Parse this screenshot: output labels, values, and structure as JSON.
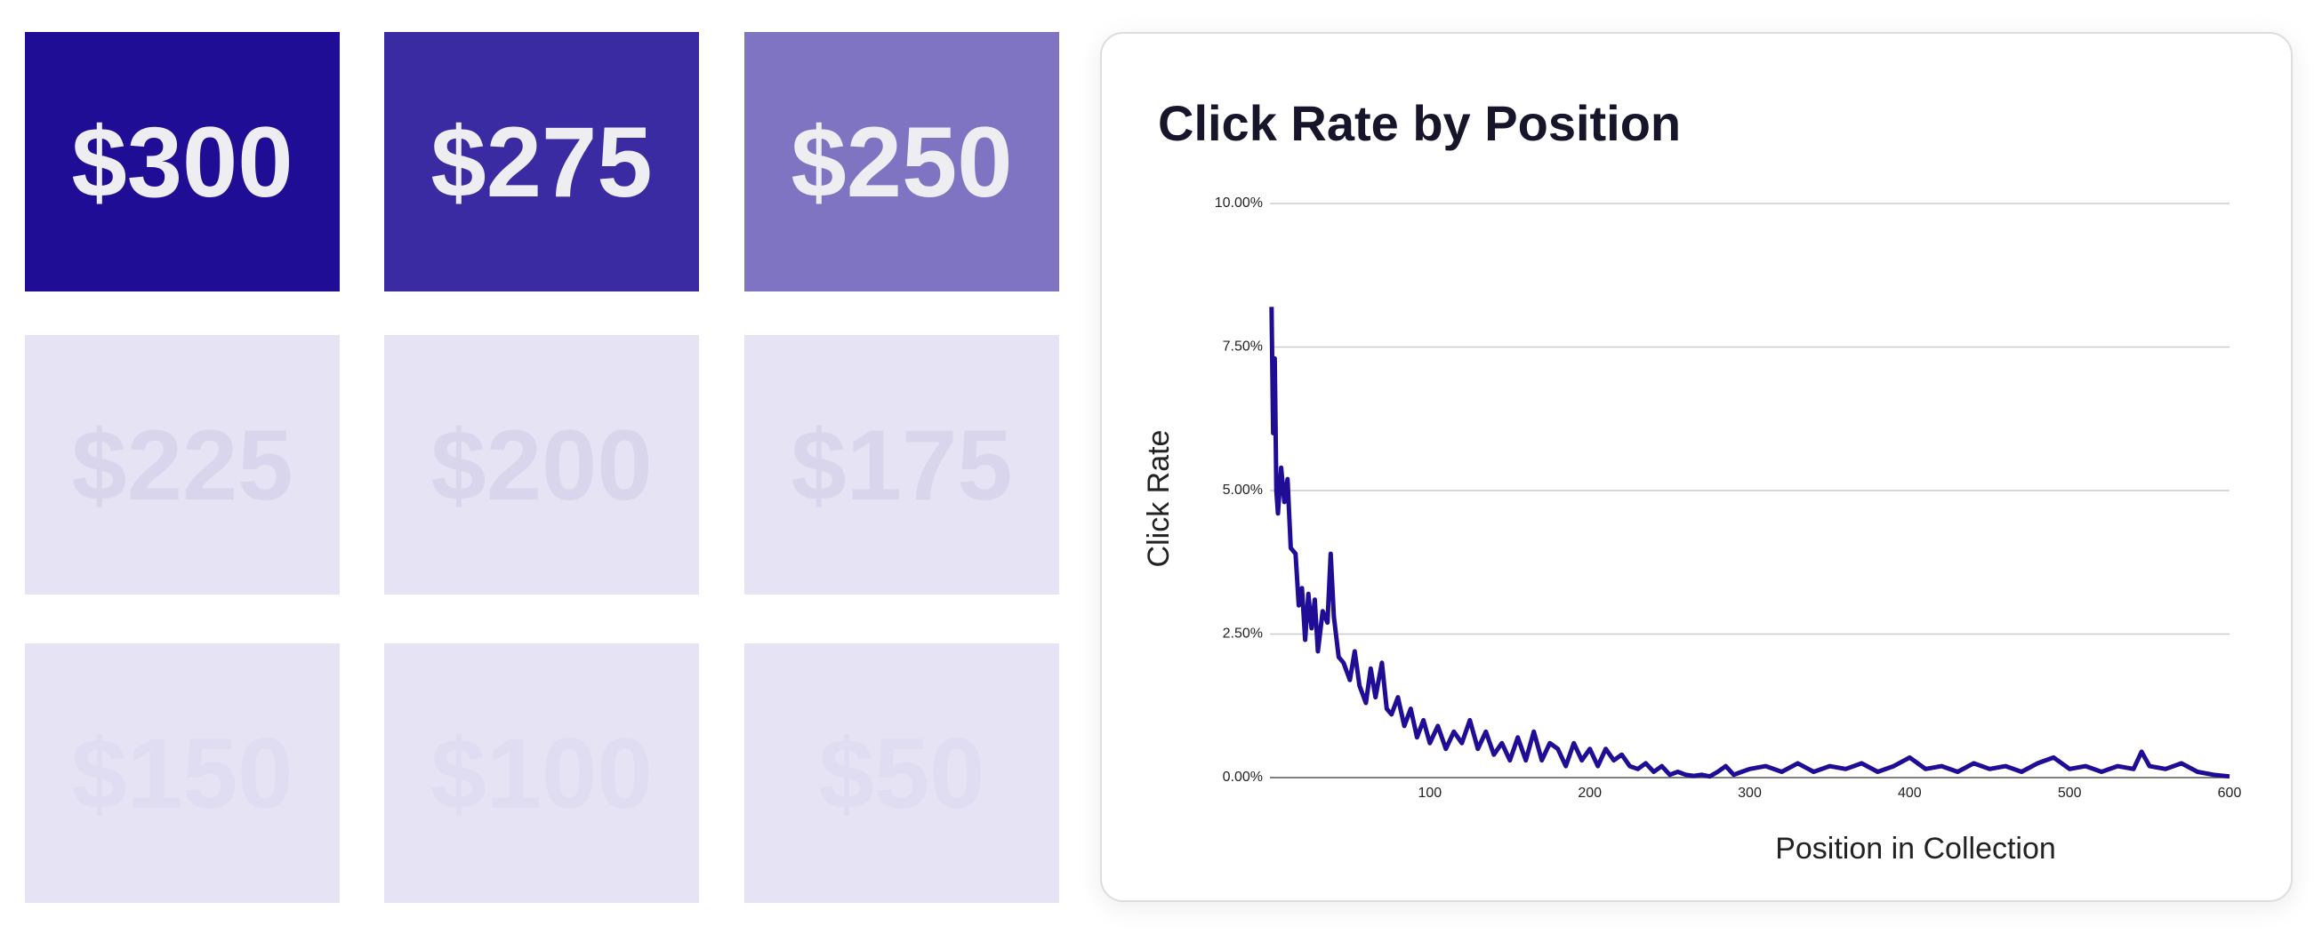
{
  "tiles": [
    {
      "label": "$300",
      "tone": "t1"
    },
    {
      "label": "$275",
      "tone": "t2"
    },
    {
      "label": "$250",
      "tone": "t3"
    },
    {
      "label": "$225",
      "tone": "t4"
    },
    {
      "label": "$200",
      "tone": "t4"
    },
    {
      "label": "$175",
      "tone": "t4"
    },
    {
      "label": "$150",
      "tone": "t5"
    },
    {
      "label": "$100",
      "tone": "t5"
    },
    {
      "label": "$50",
      "tone": "t5"
    }
  ],
  "chart_data": {
    "type": "line",
    "title": "Click Rate by Position",
    "x_label": "Position in Collection",
    "y_label": "Click Rate",
    "xlim": [
      0,
      600
    ],
    "xticks": [
      100,
      200,
      300,
      400,
      500,
      600
    ],
    "ylim": [
      0,
      10
    ],
    "yticks": [
      {
        "value": 0,
        "label": "0.00%"
      },
      {
        "value": 2.5,
        "label": "2.50%"
      },
      {
        "value": 5,
        "label": "5.00%"
      },
      {
        "value": 7.5,
        "label": "7.50%"
      },
      {
        "value": 10,
        "label": "10.00%"
      }
    ],
    "grid": true,
    "x": [
      1,
      2,
      3,
      4,
      5,
      7,
      9,
      11,
      13,
      16,
      18,
      20,
      22,
      24,
      26,
      28,
      30,
      33,
      36,
      38,
      40,
      43,
      46,
      50,
      53,
      56,
      60,
      63,
      66,
      70,
      73,
      76,
      80,
      84,
      88,
      92,
      96,
      100,
      105,
      110,
      115,
      120,
      125,
      130,
      135,
      140,
      145,
      150,
      155,
      160,
      165,
      170,
      175,
      180,
      185,
      190,
      195,
      200,
      205,
      210,
      215,
      220,
      225,
      230,
      235,
      240,
      245,
      250,
      255,
      260,
      265,
      270,
      275,
      280,
      285,
      290,
      295,
      300,
      310,
      320,
      330,
      340,
      350,
      360,
      370,
      380,
      390,
      400,
      410,
      420,
      430,
      440,
      450,
      460,
      470,
      480,
      490,
      500,
      510,
      520,
      530,
      540,
      545,
      550,
      560,
      570,
      580,
      590,
      600
    ],
    "series": [
      {
        "name": "Click Rate",
        "color": "#1f0d96",
        "values": [
          8.2,
          6.0,
          7.3,
          5.0,
          4.6,
          5.4,
          4.8,
          5.2,
          4.0,
          3.9,
          3.0,
          3.3,
          2.4,
          3.2,
          2.6,
          3.1,
          2.2,
          2.9,
          2.7,
          3.9,
          2.8,
          2.1,
          2.0,
          1.7,
          2.2,
          1.6,
          1.3,
          1.9,
          1.4,
          2.0,
          1.2,
          1.1,
          1.4,
          0.9,
          1.2,
          0.7,
          1.0,
          0.6,
          0.9,
          0.5,
          0.8,
          0.6,
          1.0,
          0.5,
          0.8,
          0.4,
          0.6,
          0.3,
          0.7,
          0.3,
          0.8,
          0.3,
          0.6,
          0.5,
          0.2,
          0.6,
          0.3,
          0.5,
          0.2,
          0.5,
          0.3,
          0.4,
          0.2,
          0.15,
          0.25,
          0.1,
          0.2,
          0.05,
          0.1,
          0.05,
          0.03,
          0.05,
          0.02,
          0.1,
          0.2,
          0.05,
          0.1,
          0.15,
          0.2,
          0.1,
          0.25,
          0.1,
          0.2,
          0.15,
          0.25,
          0.1,
          0.2,
          0.35,
          0.15,
          0.2,
          0.1,
          0.25,
          0.15,
          0.2,
          0.1,
          0.25,
          0.35,
          0.15,
          0.2,
          0.1,
          0.2,
          0.15,
          0.45,
          0.2,
          0.15,
          0.25,
          0.1,
          0.05,
          0.02
        ]
      }
    ]
  }
}
